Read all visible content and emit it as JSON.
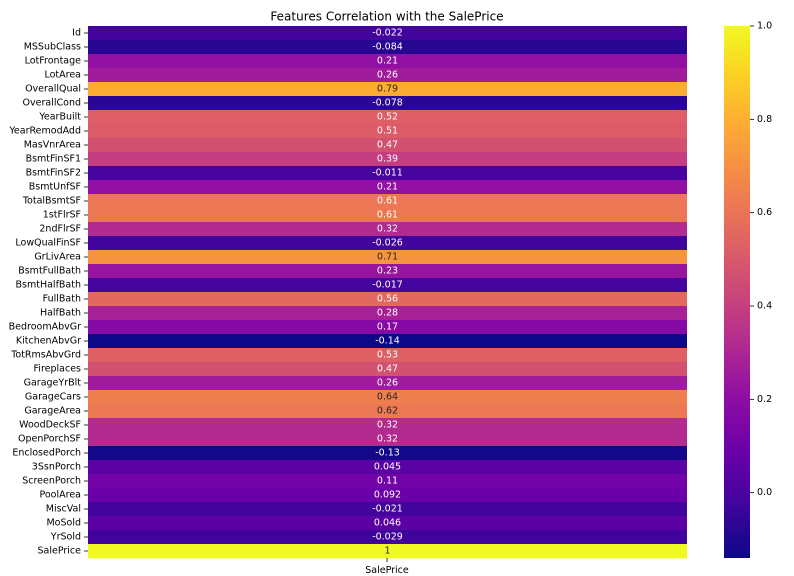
{
  "chart_data": {
    "type": "heatmap",
    "title": "Features Correlation with the SalePrice",
    "column": "SalePrice",
    "colormap": "plasma",
    "vmin": -0.14,
    "vmax": 1.0,
    "colorbar_ticks": [
      "0.0",
      "0.2",
      "0.4",
      "0.6",
      "0.8",
      "1.0"
    ],
    "rows": [
      {
        "label": "Id",
        "value": -0.022,
        "text": "-0.022"
      },
      {
        "label": "MSSubClass",
        "value": -0.084,
        "text": "-0.084"
      },
      {
        "label": "LotFrontage",
        "value": 0.21,
        "text": "0.21"
      },
      {
        "label": "LotArea",
        "value": 0.26,
        "text": "0.26"
      },
      {
        "label": "OverallQual",
        "value": 0.79,
        "text": "0.79"
      },
      {
        "label": "OverallCond",
        "value": -0.078,
        "text": "-0.078"
      },
      {
        "label": "YearBuilt",
        "value": 0.52,
        "text": "0.52"
      },
      {
        "label": "YearRemodAdd",
        "value": 0.51,
        "text": "0.51"
      },
      {
        "label": "MasVnrArea",
        "value": 0.47,
        "text": "0.47"
      },
      {
        "label": "BsmtFinSF1",
        "value": 0.39,
        "text": "0.39"
      },
      {
        "label": "BsmtFinSF2",
        "value": -0.011,
        "text": "-0.011"
      },
      {
        "label": "BsmtUnfSF",
        "value": 0.21,
        "text": "0.21"
      },
      {
        "label": "TotalBsmtSF",
        "value": 0.61,
        "text": "0.61"
      },
      {
        "label": "1stFlrSF",
        "value": 0.61,
        "text": "0.61"
      },
      {
        "label": "2ndFlrSF",
        "value": 0.32,
        "text": "0.32"
      },
      {
        "label": "LowQualFinSF",
        "value": -0.026,
        "text": "-0.026"
      },
      {
        "label": "GrLivArea",
        "value": 0.71,
        "text": "0.71"
      },
      {
        "label": "BsmtFullBath",
        "value": 0.23,
        "text": "0.23"
      },
      {
        "label": "BsmtHalfBath",
        "value": -0.017,
        "text": "-0.017"
      },
      {
        "label": "FullBath",
        "value": 0.56,
        "text": "0.56"
      },
      {
        "label": "HalfBath",
        "value": 0.28,
        "text": "0.28"
      },
      {
        "label": "BedroomAbvGr",
        "value": 0.17,
        "text": "0.17"
      },
      {
        "label": "KitchenAbvGr",
        "value": -0.14,
        "text": "-0.14"
      },
      {
        "label": "TotRmsAbvGrd",
        "value": 0.53,
        "text": "0.53"
      },
      {
        "label": "Fireplaces",
        "value": 0.47,
        "text": "0.47"
      },
      {
        "label": "GarageYrBlt",
        "value": 0.26,
        "text": "0.26"
      },
      {
        "label": "GarageCars",
        "value": 0.64,
        "text": "0.64"
      },
      {
        "label": "GarageArea",
        "value": 0.62,
        "text": "0.62"
      },
      {
        "label": "WoodDeckSF",
        "value": 0.32,
        "text": "0.32"
      },
      {
        "label": "OpenPorchSF",
        "value": 0.32,
        "text": "0.32"
      },
      {
        "label": "EnclosedPorch",
        "value": -0.13,
        "text": "-0.13"
      },
      {
        "label": "3SsnPorch",
        "value": 0.045,
        "text": "0.045"
      },
      {
        "label": "ScreenPorch",
        "value": 0.11,
        "text": "0.11"
      },
      {
        "label": "PoolArea",
        "value": 0.092,
        "text": "0.092"
      },
      {
        "label": "MiscVal",
        "value": -0.021,
        "text": "-0.021"
      },
      {
        "label": "MoSold",
        "value": 0.046,
        "text": "0.046"
      },
      {
        "label": "YrSold",
        "value": -0.029,
        "text": "-0.029"
      },
      {
        "label": "SalePrice",
        "value": 1.0,
        "text": "1"
      }
    ]
  }
}
